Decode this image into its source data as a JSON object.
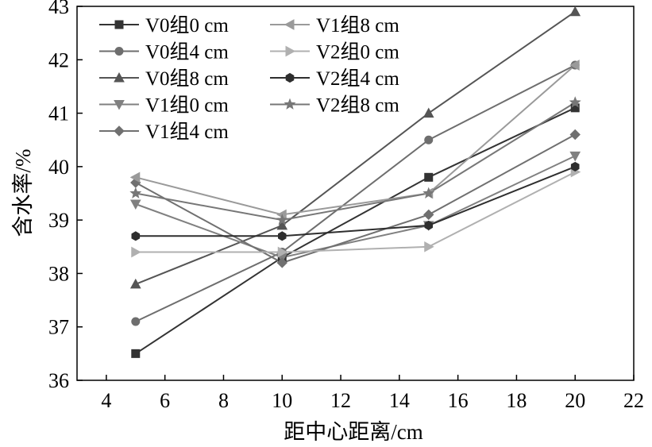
{
  "chart_data": {
    "type": "line",
    "xlabel": "距中心距离/cm",
    "ylabel": "含水率/%",
    "xlim": [
      3,
      22
    ],
    "ylim": [
      36,
      43
    ],
    "xticks": [
      4,
      6,
      8,
      10,
      12,
      14,
      16,
      18,
      20,
      22
    ],
    "yticks": [
      36,
      37,
      38,
      39,
      40,
      41,
      42,
      43
    ],
    "grid": false,
    "legend_position": "top-left",
    "x": [
      5,
      10,
      15,
      20
    ],
    "series": [
      {
        "name": "V0组0 cm",
        "marker": "square",
        "color": "#333333",
        "values": [
          36.5,
          38.3,
          39.8,
          41.1
        ]
      },
      {
        "name": "V0组4 cm",
        "marker": "circle",
        "color": "#6e6e6e",
        "values": [
          37.1,
          38.4,
          40.5,
          41.9
        ]
      },
      {
        "name": "V0组8 cm",
        "marker": "triangle-up",
        "color": "#555555",
        "values": [
          37.8,
          38.9,
          41.0,
          42.9
        ]
      },
      {
        "name": "V1组0 cm",
        "marker": "triangle-down",
        "color": "#808080",
        "values": [
          39.3,
          38.3,
          38.9,
          40.2
        ]
      },
      {
        "name": "V1组4 cm",
        "marker": "diamond",
        "color": "#707070",
        "values": [
          39.7,
          38.2,
          39.1,
          40.6
        ]
      },
      {
        "name": "V1组8 cm",
        "marker": "triangle-left",
        "color": "#9a9a9a",
        "values": [
          39.8,
          39.1,
          39.5,
          41.9
        ]
      },
      {
        "name": "V2组0 cm",
        "marker": "triangle-right",
        "color": "#b0b0b0",
        "values": [
          38.4,
          38.4,
          38.5,
          39.9
        ]
      },
      {
        "name": "V2组4 cm",
        "marker": "hexagon",
        "color": "#2e2e2e",
        "values": [
          38.7,
          38.7,
          38.9,
          40.0
        ]
      },
      {
        "name": "V2组8 cm",
        "marker": "star",
        "color": "#777777",
        "values": [
          39.5,
          39.0,
          39.5,
          41.2
        ]
      }
    ]
  }
}
